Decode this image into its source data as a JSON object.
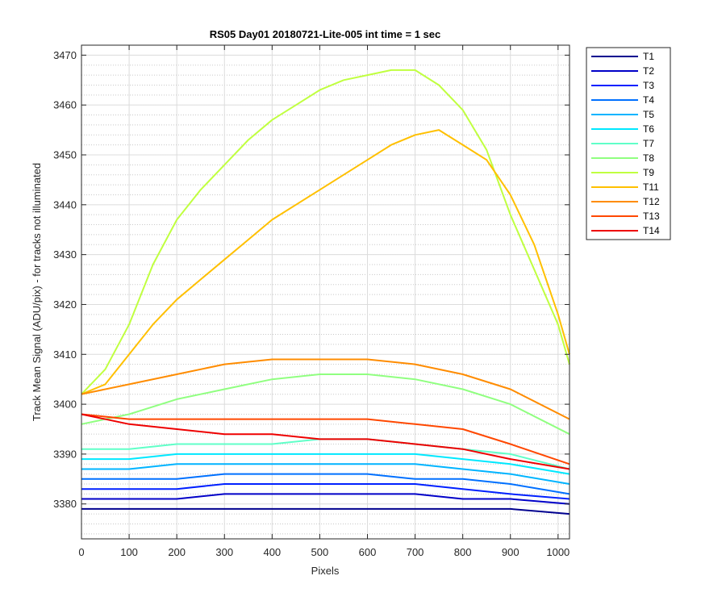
{
  "chart_data": {
    "type": "line",
    "title": "RS05 Day01 20180721-Lite-005 int time = 1 sec",
    "xlabel": "Pixels",
    "ylabel": "Track Mean Signal (ADU/pix) - for tracks not illuminated",
    "xlim": [
      0,
      1024
    ],
    "ylim": [
      3373,
      3472
    ],
    "xticks": [
      0,
      100,
      200,
      300,
      400,
      500,
      600,
      700,
      800,
      900,
      1000
    ],
    "yticks": [
      3380,
      3390,
      3400,
      3410,
      3420,
      3430,
      3440,
      3450,
      3460,
      3470
    ],
    "grid": true,
    "minor_grid_y": true,
    "legend_position": "outside-top-right",
    "series": [
      {
        "name": "T1",
        "color": "#00008f",
        "x": [
          0,
          100,
          200,
          300,
          400,
          500,
          600,
          700,
          800,
          900,
          1024
        ],
        "y": [
          3379,
          3379,
          3379,
          3379,
          3379,
          3379,
          3379,
          3379,
          3379,
          3379,
          3378
        ]
      },
      {
        "name": "T2",
        "color": "#0000c8",
        "x": [
          0,
          100,
          200,
          300,
          400,
          500,
          600,
          700,
          800,
          900,
          1024
        ],
        "y": [
          3381,
          3381,
          3381,
          3382,
          3382,
          3382,
          3382,
          3382,
          3381,
          3381,
          3380
        ]
      },
      {
        "name": "T3",
        "color": "#0020ff",
        "x": [
          0,
          100,
          200,
          300,
          400,
          500,
          600,
          700,
          800,
          900,
          1024
        ],
        "y": [
          3383,
          3383,
          3383,
          3384,
          3384,
          3384,
          3384,
          3384,
          3383,
          3382,
          3381
        ]
      },
      {
        "name": "T4",
        "color": "#0070ff",
        "x": [
          0,
          100,
          200,
          300,
          400,
          500,
          600,
          700,
          800,
          900,
          1024
        ],
        "y": [
          3385,
          3385,
          3385,
          3386,
          3386,
          3386,
          3386,
          3385,
          3385,
          3384,
          3382
        ]
      },
      {
        "name": "T5",
        "color": "#00b4ff",
        "x": [
          0,
          100,
          200,
          300,
          400,
          500,
          600,
          700,
          800,
          900,
          1024
        ],
        "y": [
          3387,
          3387,
          3388,
          3388,
          3388,
          3388,
          3388,
          3388,
          3387,
          3386,
          3384
        ]
      },
      {
        "name": "T6",
        "color": "#00e8ff",
        "x": [
          0,
          100,
          200,
          300,
          400,
          500,
          600,
          700,
          800,
          900,
          1024
        ],
        "y": [
          3389,
          3389,
          3390,
          3390,
          3390,
          3390,
          3390,
          3390,
          3389,
          3388,
          3386
        ]
      },
      {
        "name": "T7",
        "color": "#60ffc8",
        "x": [
          0,
          100,
          200,
          300,
          400,
          500,
          600,
          700,
          800,
          900,
          1024
        ],
        "y": [
          3391,
          3391,
          3392,
          3392,
          3392,
          3393,
          3393,
          3392,
          3391,
          3390,
          3387
        ]
      },
      {
        "name": "T8",
        "color": "#90ff80",
        "x": [
          0,
          100,
          200,
          300,
          400,
          500,
          600,
          700,
          800,
          900,
          1024
        ],
        "y": [
          3396,
          3398,
          3401,
          3403,
          3405,
          3406,
          3406,
          3405,
          3403,
          3400,
          3394
        ]
      },
      {
        "name": "T9",
        "color": "#c0ff40",
        "x": [
          0,
          50,
          100,
          150,
          200,
          250,
          300,
          350,
          400,
          450,
          500,
          550,
          600,
          650,
          700,
          750,
          800,
          850,
          900,
          950,
          1000,
          1024
        ],
        "y": [
          3402,
          3407,
          3416,
          3428,
          3437,
          3443,
          3448,
          3453,
          3457,
          3460,
          3463,
          3465,
          3466,
          3467,
          3467,
          3464,
          3459,
          3451,
          3438,
          3427,
          3416,
          3408
        ]
      },
      {
        "name": "T11",
        "color": "#ffc000",
        "x": [
          0,
          50,
          100,
          150,
          200,
          250,
          300,
          350,
          400,
          450,
          500,
          550,
          600,
          650,
          700,
          750,
          800,
          850,
          900,
          950,
          1000,
          1024
        ],
        "y": [
          3402,
          3404,
          3410,
          3416,
          3421,
          3425,
          3429,
          3433,
          3437,
          3440,
          3443,
          3446,
          3449,
          3452,
          3454,
          3455,
          3452,
          3449,
          3442,
          3432,
          3418,
          3410
        ]
      },
      {
        "name": "T12",
        "color": "#ff8c00",
        "x": [
          0,
          100,
          200,
          300,
          400,
          500,
          600,
          700,
          800,
          900,
          1024
        ],
        "y": [
          3402,
          3404,
          3406,
          3408,
          3409,
          3409,
          3409,
          3408,
          3406,
          3403,
          3397
        ]
      },
      {
        "name": "T13",
        "color": "#ff4800",
        "x": [
          0,
          100,
          200,
          300,
          400,
          500,
          600,
          700,
          800,
          900,
          1024
        ],
        "y": [
          3398,
          3397,
          3397,
          3397,
          3397,
          3397,
          3397,
          3396,
          3395,
          3392,
          3388
        ]
      },
      {
        "name": "T14",
        "color": "#ee0000",
        "x": [
          0,
          100,
          200,
          300,
          400,
          500,
          600,
          700,
          800,
          900,
          1024
        ],
        "y": [
          3398,
          3396,
          3395,
          3394,
          3394,
          3393,
          3393,
          3392,
          3391,
          3389,
          3387
        ]
      }
    ]
  }
}
